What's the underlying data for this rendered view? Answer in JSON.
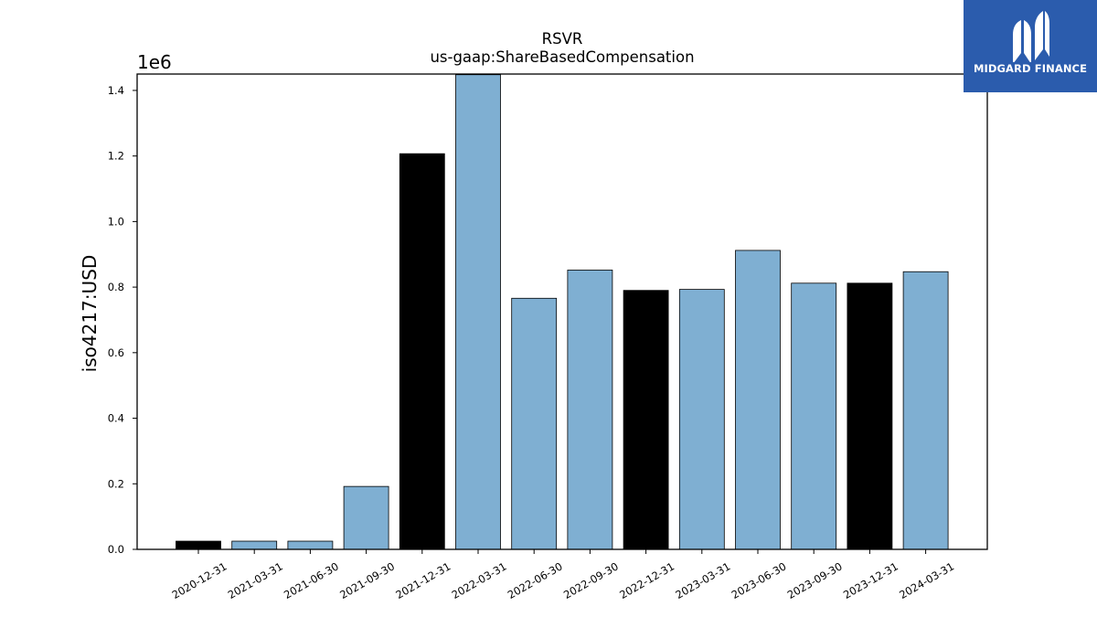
{
  "logo": {
    "text": "MIDGARD FINANCE",
    "icon": "midgard-m-icon",
    "background": "#2b5cad"
  },
  "chart_data": {
    "type": "bar",
    "title": "RSVR",
    "subtitle": "us-gaap:ShareBasedCompensation",
    "xlabel": "",
    "ylabel": "iso4217:USD",
    "y_offset_label": "1e6",
    "ylim": [
      0,
      1450000
    ],
    "yticks": [
      0,
      200000,
      400000,
      600000,
      800000,
      1000000,
      1200000,
      1400000
    ],
    "ytick_labels": [
      "0.0",
      "0.2",
      "0.4",
      "0.6",
      "0.8",
      "1.0",
      "1.2",
      "1.4"
    ],
    "grid": false,
    "colors": {
      "annual": "#000000",
      "quarterly": "#7fafd2",
      "edge": "#000000"
    },
    "categories": [
      "2020-12-31",
      "2021-03-31",
      "2021-06-30",
      "2021-09-30",
      "2021-12-31",
      "2022-03-31",
      "2022-06-30",
      "2022-09-30",
      "2022-12-31",
      "2023-03-31",
      "2023-06-30",
      "2023-09-30",
      "2023-12-31",
      "2024-03-31"
    ],
    "values": [
      25000,
      25000,
      25000,
      192000,
      1207000,
      1448000,
      766000,
      852000,
      790000,
      793000,
      912000,
      812000,
      812000,
      847000
    ],
    "bar_kind": [
      "annual",
      "quarterly",
      "quarterly",
      "quarterly",
      "annual",
      "quarterly",
      "quarterly",
      "quarterly",
      "annual",
      "quarterly",
      "quarterly",
      "quarterly",
      "annual",
      "quarterly"
    ]
  }
}
